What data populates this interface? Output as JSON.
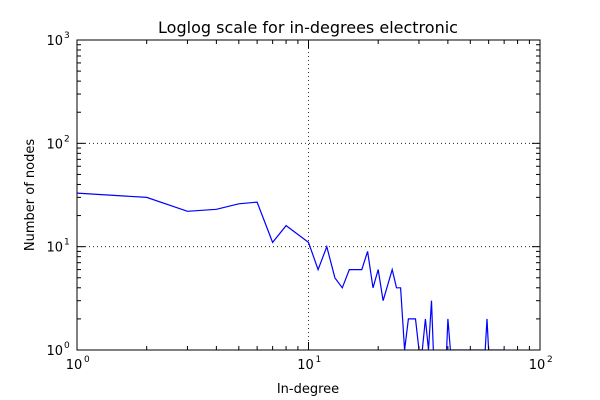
{
  "chart_data": {
    "type": "line",
    "title": "Loglog scale for in-degrees electronic",
    "xlabel": "In-degree",
    "ylabel": "Number of nodes",
    "xscale": "log",
    "yscale": "log",
    "xlim": [
      1,
      100
    ],
    "ylim": [
      1,
      1000
    ],
    "grid": true,
    "legend": "none",
    "line_color": "#0000ff",
    "x_ticks": [
      {
        "base": "10",
        "exp": "0",
        "value": 1
      },
      {
        "base": "10",
        "exp": "1",
        "value": 10
      },
      {
        "base": "10",
        "exp": "2",
        "value": 100
      }
    ],
    "y_ticks": [
      {
        "base": "10",
        "exp": "0",
        "value": 1
      },
      {
        "base": "10",
        "exp": "1",
        "value": 10
      },
      {
        "base": "10",
        "exp": "2",
        "value": 100
      },
      {
        "base": "10",
        "exp": "3",
        "value": 1000
      }
    ],
    "series": [
      {
        "x": [
          1,
          2,
          3,
          4,
          5,
          6,
          7,
          8,
          10,
          11,
          12,
          13,
          14,
          15,
          17,
          18,
          19,
          20,
          21,
          23,
          24,
          25,
          26,
          27,
          29,
          30,
          31,
          32,
          33,
          34,
          35,
          39,
          40,
          41,
          58,
          59,
          60,
          70
        ],
        "y": [
          33,
          30,
          22,
          23,
          26,
          27,
          11,
          16,
          11,
          6,
          10,
          5,
          4,
          6,
          6,
          9,
          4,
          6,
          3,
          6,
          4,
          4,
          1,
          2,
          2,
          1,
          1,
          2,
          1,
          3,
          0.5,
          0.5,
          2,
          1,
          1,
          2,
          1,
          1
        ]
      }
    ]
  }
}
